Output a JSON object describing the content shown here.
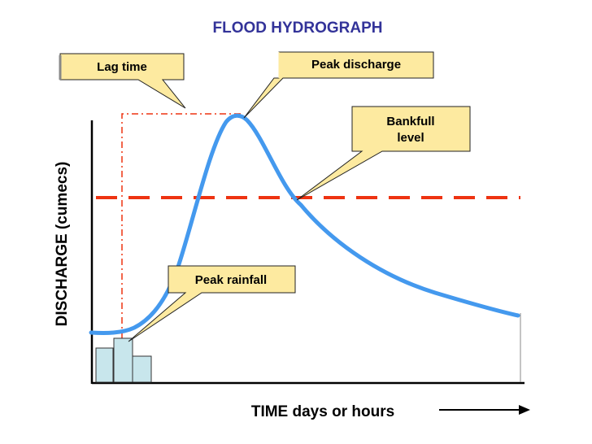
{
  "title": "FLOOD HYDROGRAPH",
  "title_color": "#333399",
  "y_axis": {
    "bold": "DISCHARGE",
    "normal": " (cumecs)"
  },
  "x_axis": {
    "label": "TIME days or hours"
  },
  "callouts": {
    "lag_time": "Lag time",
    "peak_discharge": "Peak discharge",
    "bankfull_line1": "Bankfull",
    "bankfull_line2": "level",
    "peak_rainfall": "Peak rainfall"
  },
  "colors": {
    "hydrograph": "#4499ee",
    "bankfull": "#ee3311",
    "lag_guide": "#ee3311",
    "callout_fill": "#fdeaa0",
    "rain_fill": "#c8e6ec",
    "axis": "#000000"
  },
  "icons": {
    "time_arrow": "right-arrow-icon"
  }
}
